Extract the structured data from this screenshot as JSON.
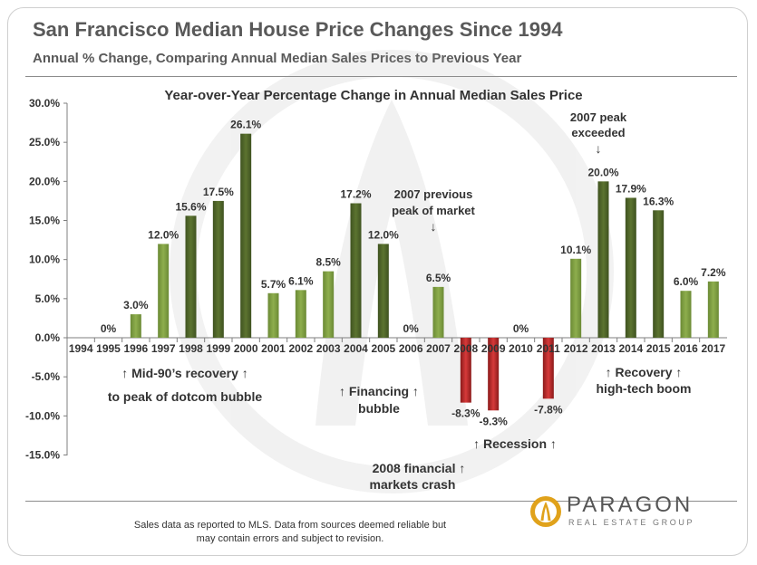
{
  "header": {
    "title": "San Francisco Median House Price Changes Since 1994",
    "subtitle": "Annual % Change, Comparing Annual Median Sales Prices to Previous Year"
  },
  "chart_data": {
    "type": "bar",
    "title": "Year-over-Year Percentage Change in Annual Median Sales Price",
    "categories": [
      "1994",
      "1995",
      "1996",
      "1997",
      "1998",
      "1999",
      "2000",
      "2001",
      "2002",
      "2003",
      "2004",
      "2005",
      "2006",
      "2007",
      "2008",
      "2009",
      "2010",
      "2011",
      "2012",
      "2013",
      "2014",
      "2015",
      "2016",
      "2017"
    ],
    "values": [
      null,
      0,
      3.0,
      12.0,
      15.6,
      17.5,
      26.1,
      5.7,
      6.1,
      8.5,
      17.2,
      12.0,
      0,
      6.5,
      -8.3,
      -9.3,
      0,
      -7.8,
      10.1,
      20.0,
      17.9,
      16.3,
      6.0,
      7.2
    ],
    "data_labels": [
      "",
      "0%",
      "3.0%",
      "12.0%",
      "15.6%",
      "17.5%",
      "26.1%",
      "5.7%",
      "6.1%",
      "8.5%",
      "17.2%",
      "12.0%",
      "0%",
      "6.5%",
      "-8.3%",
      "-9.3%",
      "0%",
      "-7.8%",
      "10.1%",
      "20.0%",
      "17.9%",
      "16.3%",
      "6.0%",
      "7.2%"
    ],
    "ylim": [
      -15,
      30
    ],
    "yticks": [
      30,
      25,
      20,
      15,
      10,
      5,
      0,
      -5,
      -10,
      -15
    ],
    "ytick_labels": [
      "30.0%",
      "25.0%",
      "20.0%",
      "15.0%",
      "10.0%",
      "5.0%",
      "0.0%",
      "-5.0%",
      "-10.0%",
      "-15.0%"
    ],
    "dark_bars": [
      "1998",
      "1999",
      "2000",
      "2004",
      "2005",
      "2013",
      "2014",
      "2015"
    ],
    "grid": false,
    "colors": {
      "light_green": "#77933c",
      "dark_green": "#4f6228",
      "red": "#c0392b",
      "dark_red": "#8b1a1a",
      "axis": "#7f7f7f",
      "label_text": "#333333"
    },
    "annotations": [
      {
        "key": "mid90",
        "lines": [
          "↑  Mid-90’s recovery ↑",
          "to peak of dotcom bubble"
        ]
      },
      {
        "key": "financing",
        "lines": [
          "↑ Financing ↑",
          "bubble"
        ]
      },
      {
        "key": "prevpeak",
        "lines": [
          "2007 previous",
          "peak of market",
          "↓"
        ]
      },
      {
        "key": "recession",
        "lines": [
          "↑ Recession ↑"
        ]
      },
      {
        "key": "crash",
        "lines": [
          "2008 financial ↑",
          "markets crash"
        ]
      },
      {
        "key": "peak",
        "lines": [
          "2007 peak",
          "exceeded",
          "↓"
        ]
      },
      {
        "key": "recovery",
        "lines": [
          "↑    Recovery   ↑",
          "high-tech boom"
        ]
      }
    ]
  },
  "footer": {
    "note_line1": "Sales data as reported to MLS. Data from sources deemed reliable but",
    "note_line2": "may contain errors and subject to revision.",
    "brand_name": "PARAGON",
    "brand_tag": "REAL ESTATE GROUP"
  }
}
